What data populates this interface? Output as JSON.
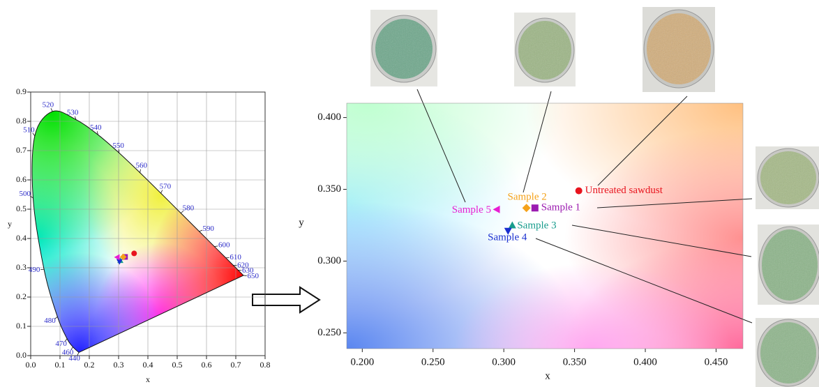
{
  "chart_data": [
    {
      "type": "scatter",
      "x_label": "x",
      "y_label": "y",
      "xlim": [
        0,
        0.8
      ],
      "ylim": [
        0,
        0.9
      ],
      "xticks": [
        {
          "value": 0,
          "label": "0.0"
        },
        {
          "value": 0.1,
          "label": "0.1"
        },
        {
          "value": 0.2,
          "label": "0.2"
        },
        {
          "value": 0.3,
          "label": "0.3"
        },
        {
          "value": 0.4,
          "label": "0.4"
        },
        {
          "value": 0.5,
          "label": "0.5"
        },
        {
          "value": 0.6,
          "label": "0.6"
        },
        {
          "value": 0.7,
          "label": "0.7"
        },
        {
          "value": 0.8,
          "label": "0.8"
        }
      ],
      "yticks": [
        {
          "value": 0,
          "label": "0.0"
        },
        {
          "value": 0.1,
          "label": "0.1"
        },
        {
          "value": 0.2,
          "label": "0.2"
        },
        {
          "value": 0.3,
          "label": "0.3"
        },
        {
          "value": 0.4,
          "label": "0.4"
        },
        {
          "value": 0.5,
          "label": "0.5"
        },
        {
          "value": 0.6,
          "label": "0.6"
        },
        {
          "value": 0.7,
          "label": "0.7"
        },
        {
          "value": 0.8,
          "label": "0.8"
        },
        {
          "value": 0.9,
          "label": "0.9"
        }
      ],
      "grid": true,
      "spectral_locus": [
        {
          "label": "440",
          "x": 0.1644,
          "y": 0.0109
        },
        {
          "label": "460",
          "x": 0.144,
          "y": 0.0297
        },
        {
          "label": "470",
          "x": 0.1241,
          "y": 0.0578
        },
        {
          "label": "480",
          "x": 0.0913,
          "y": 0.1327
        },
        {
          "label": "490",
          "x": 0.0454,
          "y": 0.295
        },
        {
          "label": "500",
          "x": 0.0082,
          "y": 0.5384
        },
        {
          "label": "510",
          "x": 0.0139,
          "y": 0.7502
        },
        {
          "label": "520",
          "x": 0.0743,
          "y": 0.8338
        },
        {
          "label": "530",
          "x": 0.1547,
          "y": 0.8059
        },
        {
          "label": "540",
          "x": 0.2296,
          "y": 0.7543
        },
        {
          "label": "550",
          "x": 0.3016,
          "y": 0.6923
        },
        {
          "label": "560",
          "x": 0.3731,
          "y": 0.6245
        },
        {
          "label": "570",
          "x": 0.4441,
          "y": 0.5547
        },
        {
          "label": "580",
          "x": 0.5125,
          "y": 0.4866
        },
        {
          "label": "590",
          "x": 0.5752,
          "y": 0.4242
        },
        {
          "label": "600",
          "x": 0.627,
          "y": 0.3725
        },
        {
          "label": "610",
          "x": 0.6658,
          "y": 0.334
        },
        {
          "label": "620",
          "x": 0.6915,
          "y": 0.3083
        },
        {
          "label": "630",
          "x": 0.7079,
          "y": 0.292
        },
        {
          "label": "650",
          "x": 0.726,
          "y": 0.274
        }
      ],
      "series": [
        {
          "color": "#e8141e",
          "marker": "circle",
          "x": [
            0.353
          ],
          "y": [
            0.349
          ]
        },
        {
          "color": "#9b1bb0",
          "marker": "square",
          "x": [
            0.322
          ],
          "y": [
            0.337
          ]
        },
        {
          "color": "#f5a21a",
          "marker": "diamond",
          "x": [
            0.316
          ],
          "y": [
            0.337
          ]
        },
        {
          "color": "#179c8c",
          "marker": "triangle-up",
          "x": [
            0.306
          ],
          "y": [
            0.325
          ]
        },
        {
          "color": "#1a2fd0",
          "marker": "triangle-down",
          "x": [
            0.303
          ],
          "y": [
            0.321
          ]
        },
        {
          "color": "#e81ed2",
          "marker": "triangle-left",
          "x": [
            0.295
          ],
          "y": [
            0.336
          ]
        }
      ]
    },
    {
      "type": "scatter",
      "x_label": "x",
      "y_label": "y",
      "xlim": [
        0.189,
        0.469
      ],
      "ylim": [
        0.239,
        0.41
      ],
      "xticks": [
        {
          "value": 0.2,
          "label": "0.200"
        },
        {
          "value": 0.25,
          "label": "0.250"
        },
        {
          "value": 0.3,
          "label": "0.300"
        },
        {
          "value": 0.35,
          "label": "0.350"
        },
        {
          "value": 0.4,
          "label": "0.400"
        },
        {
          "value": 0.45,
          "label": "0.450"
        }
      ],
      "yticks": [
        {
          "value": 0.25,
          "label": "0.250"
        },
        {
          "value": 0.3,
          "label": "0.300"
        },
        {
          "value": 0.35,
          "label": "0.350"
        },
        {
          "value": 0.4,
          "label": "0.400"
        }
      ],
      "grid": false,
      "series": [
        {
          "name": "Untreated sawdust",
          "color": "#e8141e",
          "marker": "circle",
          "x": [
            0.353
          ],
          "y": [
            0.349
          ]
        },
        {
          "name": "Sample 1",
          "color": "#9b1bb0",
          "marker": "square",
          "x": [
            0.322
          ],
          "y": [
            0.337
          ]
        },
        {
          "name": "Sample 2",
          "color": "#f5a21a",
          "marker": "diamond",
          "x": [
            0.316
          ],
          "y": [
            0.337
          ]
        },
        {
          "name": "Sample 3",
          "color": "#179c8c",
          "marker": "triangle-up",
          "x": [
            0.306
          ],
          "y": [
            0.325
          ]
        },
        {
          "name": "Sample 4",
          "color": "#1a2fd0",
          "marker": "triangle-down",
          "x": [
            0.303
          ],
          "y": [
            0.321
          ]
        },
        {
          "name": "Sample 5",
          "color": "#e81ed2",
          "marker": "triangle-left",
          "x": [
            0.295
          ],
          "y": [
            0.336
          ]
        }
      ]
    }
  ]
}
